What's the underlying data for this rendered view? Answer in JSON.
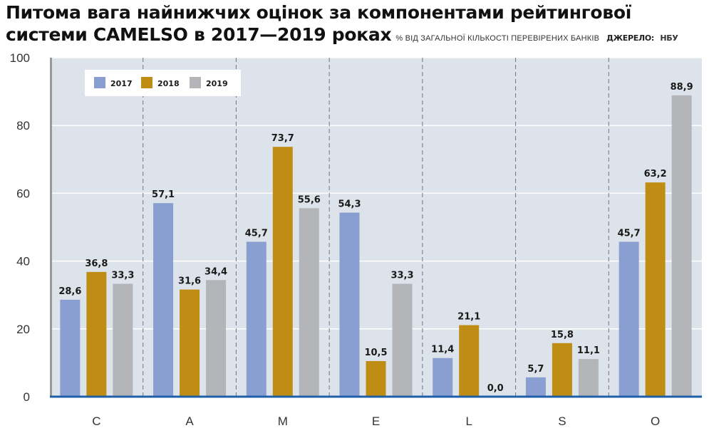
{
  "header": {
    "title_line1": "Питома вага найнижчих оцінок за компонентами рейтингової",
    "title_line2": "системи CAMELSO в 2017—2019 роках",
    "subtitle": "% ВІД ЗАГАЛЬНОЇ КІЛЬКОСТІ ПЕРЕВІРЕНИХ БАНКІВ",
    "source_label": "ДЖЕРЕЛО:",
    "source_value": "НБУ"
  },
  "colors": {
    "2017": "#8a9fd1",
    "2018": "#bf8d14",
    "2019": "#b4b5b9",
    "plot_bg": "#dde3ea",
    "baseline": "#1f5fa8"
  },
  "chart_data": {
    "type": "bar",
    "categories": [
      "C",
      "A",
      "M",
      "E",
      "L",
      "S",
      "O"
    ],
    "series": [
      {
        "name": "2017",
        "values": [
          28.6,
          57.1,
          45.7,
          54.3,
          11.4,
          5.7,
          45.7
        ]
      },
      {
        "name": "2018",
        "values": [
          36.8,
          31.6,
          73.7,
          10.5,
          21.1,
          15.8,
          63.2
        ]
      },
      {
        "name": "2019",
        "values": [
          33.3,
          34.4,
          55.6,
          33.3,
          0.0,
          11.1,
          88.9
        ]
      }
    ],
    "value_labels": [
      [
        "28,6",
        "57,1",
        "45,7",
        "54,3",
        "11,4",
        "5,7",
        "45,7"
      ],
      [
        "36,8",
        "31,6",
        "73,7",
        "10,5",
        "21,1",
        "15,8",
        "63,2"
      ],
      [
        "33,3",
        "34,4",
        "55,6",
        "33,3",
        "0,0",
        "11,1",
        "88,9"
      ]
    ],
    "yticks": [
      "0",
      "20",
      "40",
      "60",
      "80",
      "100"
    ],
    "ylim": [
      0,
      100
    ],
    "legend": "top-left",
    "grid": true
  }
}
